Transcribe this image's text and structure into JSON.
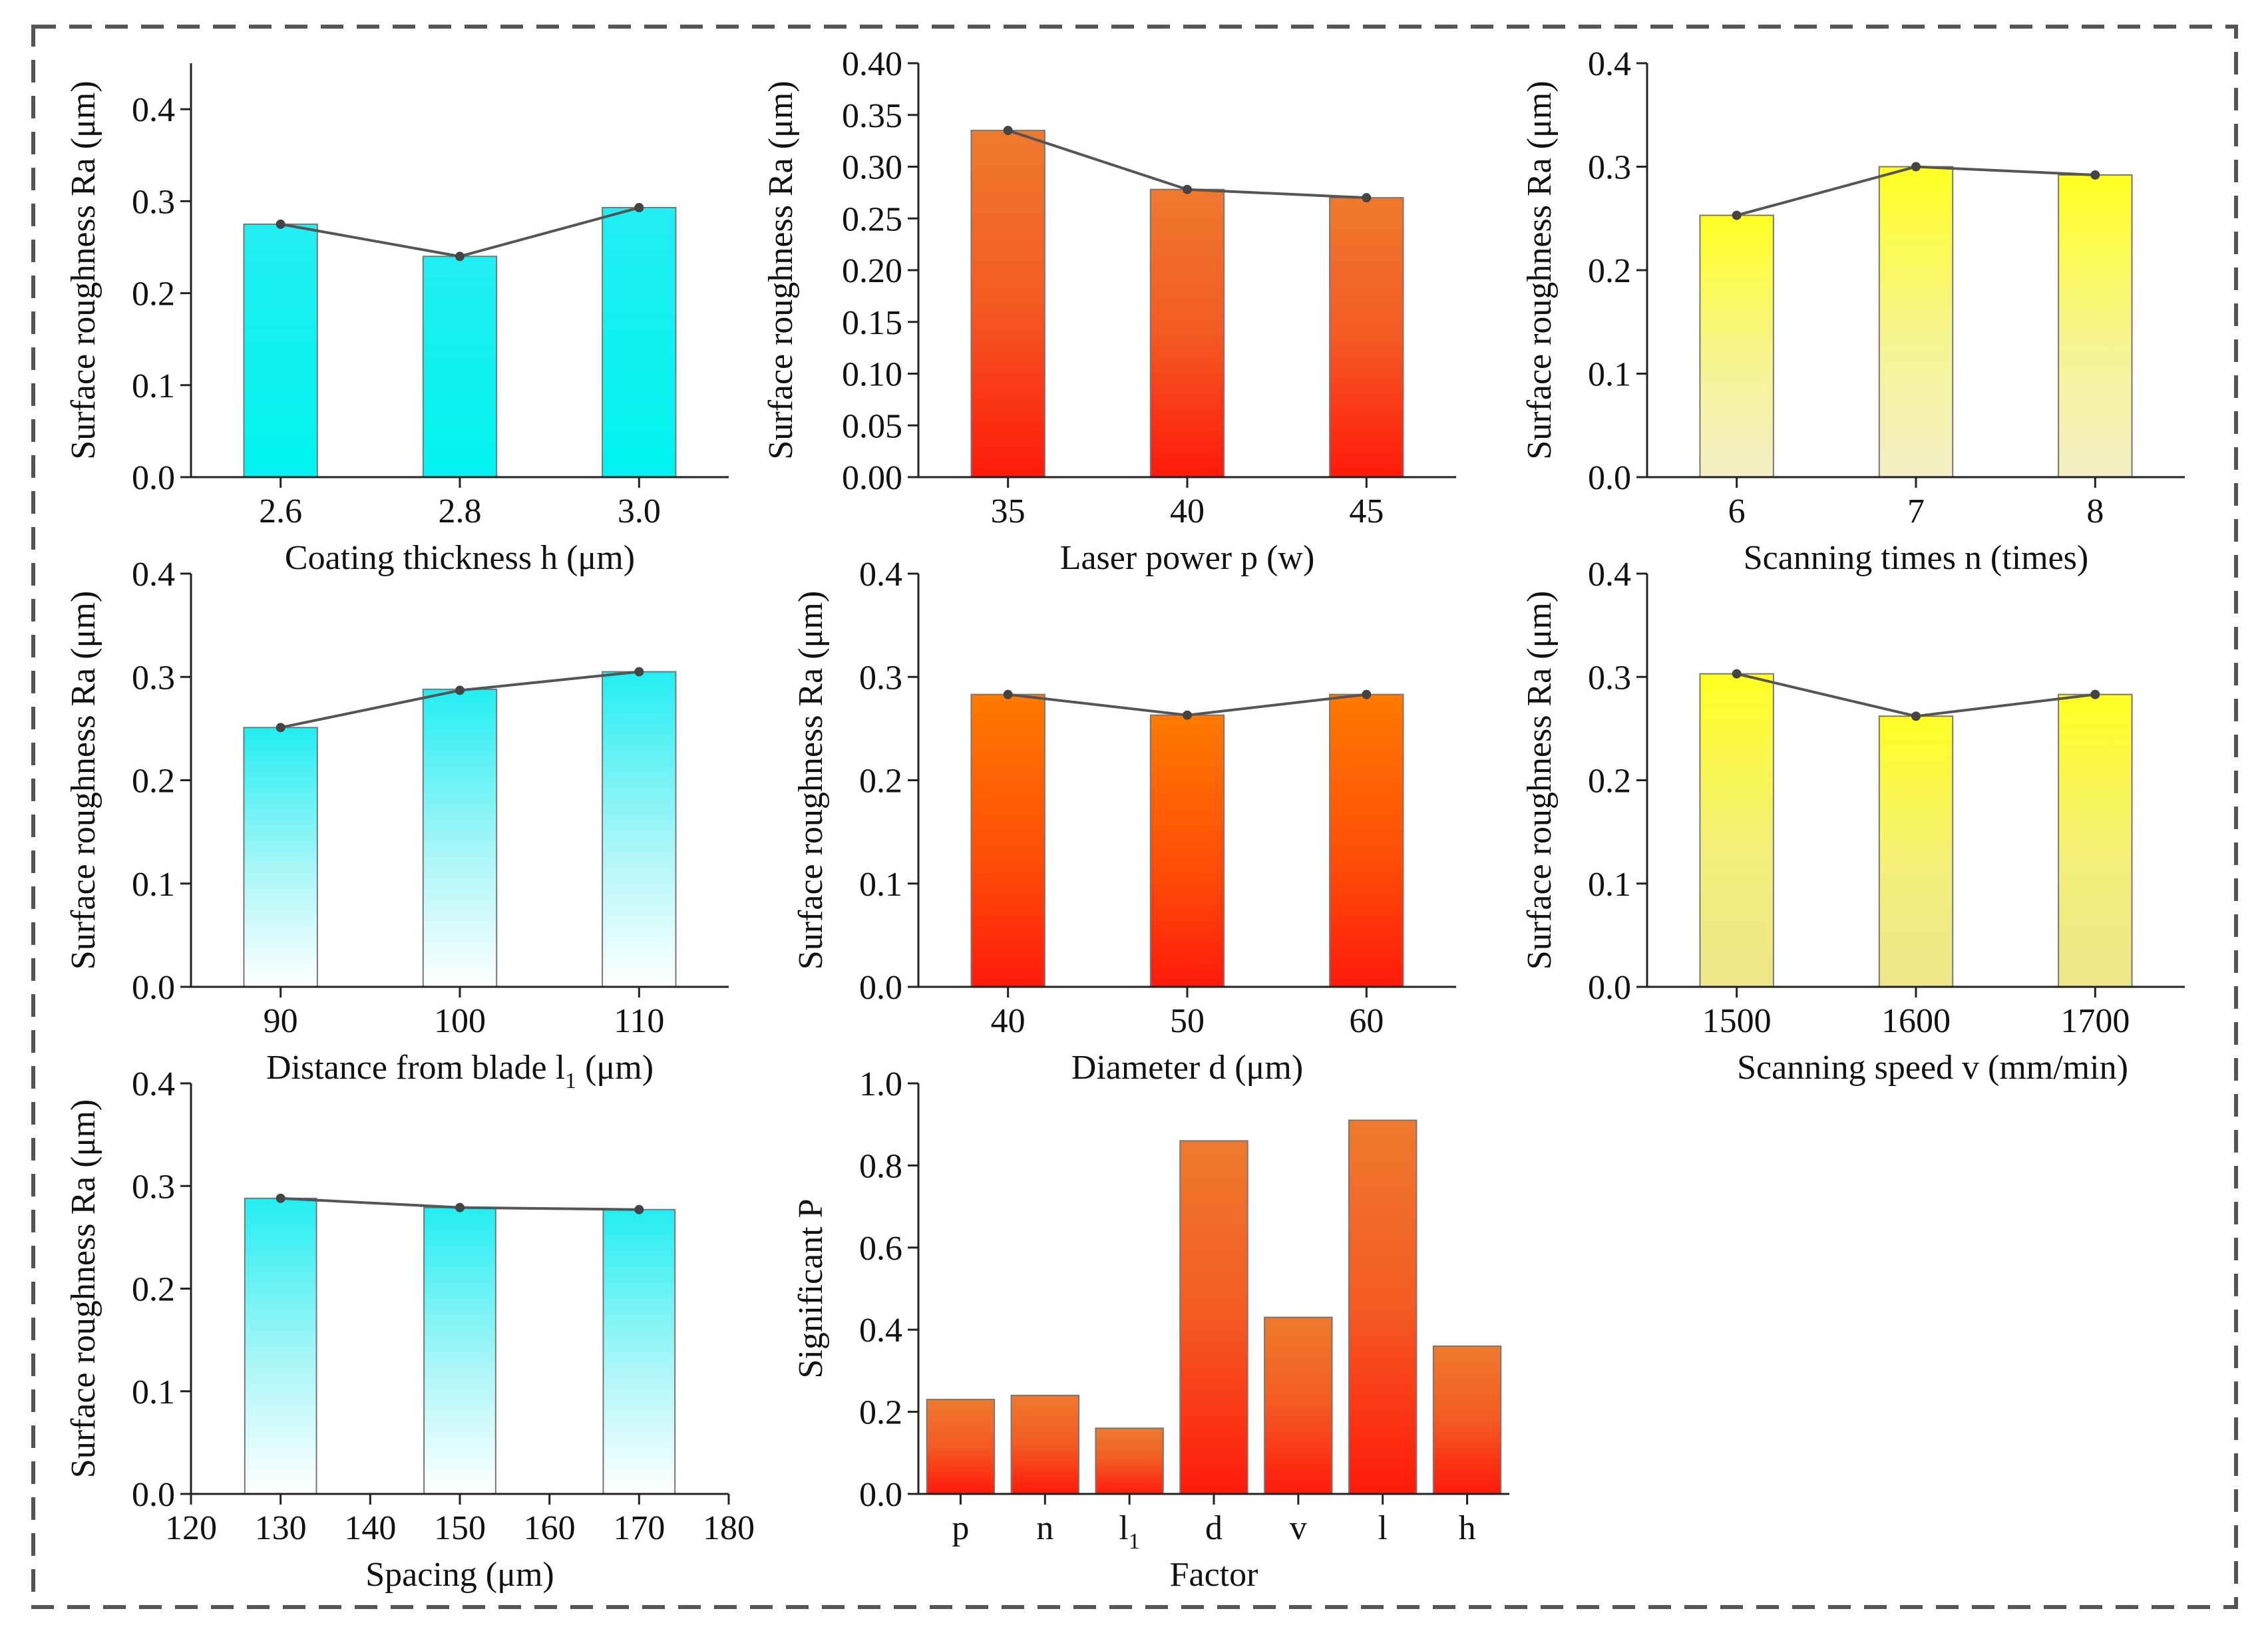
{
  "figure": {
    "border_color": "#555555"
  },
  "chart_data": [
    {
      "id": "h",
      "type": "bar",
      "fill": "cyan-solid",
      "categories": [
        "2.6",
        "2.8",
        "3.0"
      ],
      "values": [
        0.275,
        0.24,
        0.293
      ],
      "line_values": [
        0.275,
        0.24,
        0.293
      ],
      "xlabel_main": "Coating thickness h (μm)",
      "xlabel_sub": "",
      "ylabel": "Surface roughness Ra (μm)",
      "ylim": [
        0,
        0.45
      ],
      "yticks": [
        "0.0",
        "0.1",
        "0.2",
        "0.3",
        "0.4"
      ]
    },
    {
      "id": "p",
      "type": "bar",
      "fill": "red-orange",
      "categories": [
        "35",
        "40",
        "45"
      ],
      "values": [
        0.335,
        0.278,
        0.27
      ],
      "line_values": [
        0.335,
        0.278,
        0.27
      ],
      "xlabel_main": "Laser power p (w)",
      "xlabel_sub": "",
      "ylabel": "Surface roughness Ra (μm)",
      "ylim": [
        0,
        0.4
      ],
      "yticks": [
        "0.00",
        "0.05",
        "0.10",
        "0.15",
        "0.20",
        "0.25",
        "0.30",
        "0.35",
        "0.40"
      ]
    },
    {
      "id": "n",
      "type": "bar",
      "fill": "yellow-top",
      "categories": [
        "6",
        "7",
        "8"
      ],
      "values": [
        0.253,
        0.3,
        0.292
      ],
      "line_values": [
        0.253,
        0.3,
        0.292
      ],
      "xlabel_main": "Scanning times n (times)",
      "xlabel_sub": "",
      "ylabel": "Surface roughness Ra (μm)",
      "ylim": [
        0,
        0.4
      ],
      "yticks": [
        "0.0",
        "0.1",
        "0.2",
        "0.3",
        "0.4"
      ]
    },
    {
      "id": "l1",
      "type": "bar",
      "fill": "cyan-fade",
      "categories": [
        "90",
        "100",
        "110"
      ],
      "values": [
        0.251,
        0.288,
        0.305
      ],
      "line_values": [
        0.251,
        0.287,
        0.305
      ],
      "xlabel_main": "Distance from blade l",
      "xlabel_sub": "1",
      "xlabel_suffix": " (μm)",
      "ylabel": "Surface roughness Ra (μm)",
      "ylim": [
        0,
        0.4
      ],
      "yticks": [
        "0.0",
        "0.1",
        "0.2",
        "0.3",
        "0.4"
      ]
    },
    {
      "id": "d",
      "type": "bar",
      "fill": "red-orange2",
      "categories": [
        "40",
        "50",
        "60"
      ],
      "values": [
        0.283,
        0.263,
        0.283
      ],
      "line_values": [
        0.283,
        0.263,
        0.283
      ],
      "xlabel_main": "Diameter d (μm)",
      "xlabel_sub": "",
      "ylabel": "Surface roughness Ra (μm)",
      "ylim": [
        0,
        0.4
      ],
      "yticks": [
        "0.0",
        "0.1",
        "0.2",
        "0.3",
        "0.4"
      ]
    },
    {
      "id": "v",
      "type": "bar",
      "fill": "yellow-fade",
      "categories": [
        "1500",
        "1600",
        "1700"
      ],
      "values": [
        0.303,
        0.262,
        0.283
      ],
      "line_values": [
        0.303,
        0.262,
        0.283
      ],
      "xlabel_main": "Scanning speed v (mm/min)",
      "xlabel_sub": "",
      "ylabel": "Surface roughness Ra (μm)",
      "ylim": [
        0,
        0.4
      ],
      "yticks": [
        "0.0",
        "0.1",
        "0.2",
        "0.3",
        "0.4"
      ]
    },
    {
      "id": "s",
      "type": "bar",
      "fill": "cyan-fade",
      "x": [
        130,
        150,
        170
      ],
      "categories": [
        "120",
        "130",
        "140",
        "150",
        "160",
        "170",
        "180"
      ],
      "xlim": [
        120,
        180
      ],
      "bar_width_units": 8,
      "values": [
        0.288,
        0.279,
        0.277
      ],
      "line_values": [
        0.288,
        0.279,
        0.277
      ],
      "xlabel_main": "Spacing (μm)",
      "xlabel_sub": "",
      "ylabel": "Surface roughness Ra (μm)",
      "ylim": [
        0,
        0.4
      ],
      "yticks": [
        "0.0",
        "0.1",
        "0.2",
        "0.3",
        "0.4"
      ]
    },
    {
      "id": "factor",
      "type": "bar",
      "fill": "red-orange",
      "categories": [
        "p",
        "n",
        "l",
        "d",
        "v",
        "l",
        "h"
      ],
      "category_subs": [
        "",
        "",
        "1",
        "",
        "",
        "",
        ""
      ],
      "values": [
        0.23,
        0.24,
        0.16,
        0.86,
        0.43,
        0.91,
        0.36
      ],
      "xlabel_main": "Factor",
      "xlabel_sub": "",
      "ylabel": "Significant P",
      "ylim": [
        0,
        1.0
      ],
      "yticks": [
        "0.0",
        "0.2",
        "0.4",
        "0.6",
        "0.8",
        "1.0"
      ]
    }
  ]
}
